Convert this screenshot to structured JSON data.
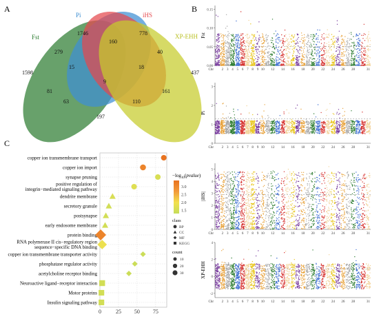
{
  "panel_labels": {
    "a": "A",
    "b": "B",
    "c": "C"
  },
  "chart_data": [
    {
      "type": "venn",
      "panel": "A",
      "sets": [
        {
          "name": "Fst",
          "color": "#2e7d32"
        },
        {
          "name": "Pi",
          "color": "#3f8fd2"
        },
        {
          "name": "iHS",
          "color": "#e5484d"
        },
        {
          "name": "XP-EHH",
          "color": "#c6cc2b"
        }
      ],
      "regions": [
        {
          "sets": [
            "Pi"
          ],
          "value": 1746
        },
        {
          "sets": [
            "iHS"
          ],
          "value": 778
        },
        {
          "sets": [
            "Fst"
          ],
          "value": 1598
        },
        {
          "sets": [
            "XP-EHH"
          ],
          "value": 437
        },
        {
          "sets": [
            "Fst",
            "Pi"
          ],
          "value": 279
        },
        {
          "sets": [
            "Pi",
            "iHS"
          ],
          "value": 160
        },
        {
          "sets": [
            "iHS",
            "XP-EHH"
          ],
          "value": 40
        },
        {
          "sets": [
            "Fst",
            "Pi",
            "iHS"
          ],
          "value": 15
        },
        {
          "sets": [
            "Pi",
            "iHS",
            "XP-EHH"
          ],
          "value": 18
        },
        {
          "sets": [
            "Fst",
            "Pi",
            "iHS",
            "XP-EHH"
          ],
          "value": 9
        },
        {
          "sets": [
            "Fst",
            "iHS"
          ],
          "value": 81
        },
        {
          "sets": [
            "Pi",
            "XP-EHH"
          ],
          "value": 161
        },
        {
          "sets": [
            "Fst",
            "iHS",
            "XP-EHH"
          ],
          "value": 63
        },
        {
          "sets": [
            "Fst",
            "Pi",
            "XP-EHH"
          ],
          "value": 110
        },
        {
          "sets": [
            "Fst",
            "XP-EHH"
          ],
          "value": 197
        }
      ]
    },
    {
      "type": "scatter",
      "panel": "B",
      "subtype": "manhattan",
      "x_tick_labels": [
        "Chr",
        "2",
        "3",
        "4",
        "5",
        "6",
        "7",
        "8",
        "9",
        "10",
        "12",
        "14",
        "16",
        "18",
        "20",
        "22",
        "24",
        "26",
        "28",
        "31"
      ],
      "chromosome_colors": [
        "#7b3fa0",
        "#e8a33d",
        "#a8a8a8",
        "#2e7d32",
        "#3f6fd2",
        "#d6322f",
        "#f2d29a",
        "#e8c61f"
      ],
      "tracks": [
        {
          "ylabel": "Fst",
          "y_ticks": [
            "0.00",
            "0.05",
            "0.10",
            "0.15"
          ],
          "ylim": [
            0,
            0.16
          ]
        },
        {
          "ylabel": "Pi",
          "y_ticks": [
            "0",
            "1",
            "2",
            "3"
          ],
          "ylim": [
            0,
            3.2
          ]
        },
        {
          "ylabel": "|iHS|",
          "y_ticks": [
            "0",
            "1",
            "2",
            "3",
            "4",
            "5"
          ],
          "ylim": [
            0,
            5.5
          ]
        },
        {
          "ylabel": "XP-EHH",
          "y_ticks": [
            "-2",
            "0",
            "2",
            "4"
          ],
          "ylim": [
            -2.5,
            4
          ]
        }
      ]
    },
    {
      "type": "scatter",
      "panel": "C",
      "subtype": "bubble",
      "categories": [
        "copper ion transmembrane transport",
        "copper ion import",
        "synapse pruning",
        "positive regulation of|integrin−mediated signaling pathway",
        "dendrite membrane",
        "secretory granule",
        "postsynapse",
        "early endosome membrane",
        "protein binding",
        "RNA polymerase II cis−regulatory region|sequence−specific DNA binding",
        "copper ion transmembrane transporter activity",
        "phosphatase regulator activity",
        "acetylcholine receptor binding",
        "Neuroactive ligand−receptor interaction",
        "Motor proteins",
        "Insulin signaling pathway"
      ],
      "x": [
        86,
        58,
        78,
        46,
        17,
        12,
        8,
        7,
        1,
        3,
        58,
        47,
        39,
        3,
        2,
        2
      ],
      "class": [
        "BP",
        "BP",
        "BP",
        "BP",
        "CC",
        "CC",
        "CC",
        "CC",
        "MF",
        "MF",
        "MF",
        "MF",
        "MF",
        "KEGG",
        "KEGG",
        "KEGG"
      ],
      "neg_log10_p": [
        3.4,
        3.1,
        1.6,
        1.7,
        1.6,
        1.5,
        1.5,
        1.5,
        3.1,
        1.9,
        1.4,
        1.4,
        1.4,
        1.5,
        1.5,
        1.5
      ],
      "count": [
        3,
        4,
        3,
        3,
        5,
        5,
        5,
        5,
        30,
        20,
        3,
        3,
        3,
        7,
        6,
        6
      ],
      "x_ticks": [
        "0",
        "25",
        "50",
        "75"
      ],
      "xlim": [
        0,
        90
      ],
      "legend_color": {
        "title": "−log10(pvalue)",
        "ticks": [
          "3.0",
          "2.5",
          "2.0",
          "1.5"
        ],
        "range": [
          1.3,
          3.4
        ],
        "colors": [
          "#c5dd5a",
          "#f2e04d",
          "#f29a3a",
          "#e8731f"
        ]
      },
      "legend_class": {
        "title": "class",
        "items": [
          "BP",
          "CC",
          "MF",
          "KEGG"
        ]
      },
      "legend_count": {
        "title": "count",
        "items": [
          "10",
          "20",
          "30"
        ]
      }
    }
  ]
}
